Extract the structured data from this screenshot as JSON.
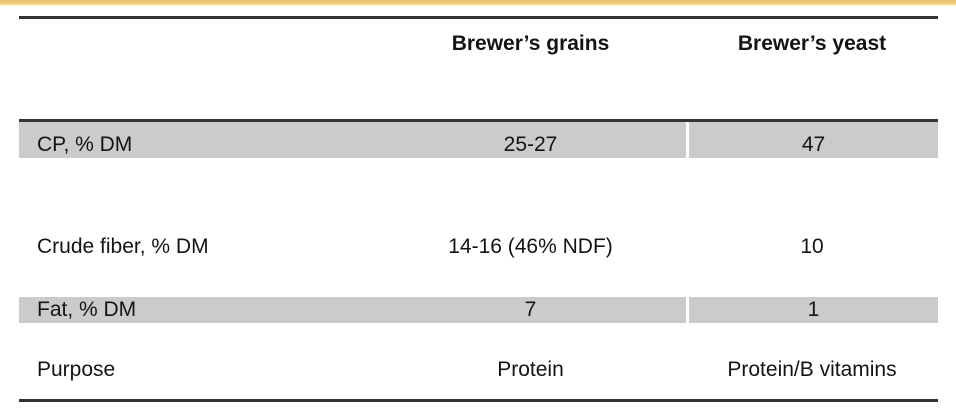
{
  "accent_bar": {
    "color": "#eaca7c"
  },
  "table": {
    "colors": {
      "shaded_row": "#cbcbcb",
      "border": "#343434",
      "text": "#141414"
    },
    "columns": [
      {
        "label": ""
      },
      {
        "label": "Brewer’s grains"
      },
      {
        "label": "Brewer’s yeast"
      }
    ],
    "rows": [
      {
        "label": "CP, % DM",
        "grains": "25-27",
        "yeast": "47",
        "shaded": true
      },
      {
        "label": "Crude fiber, % DM",
        "grains": "14-16 (46% NDF)",
        "yeast": "10",
        "shaded": false
      },
      {
        "label": "Fat, % DM",
        "grains": "7",
        "yeast": "1",
        "shaded": true
      },
      {
        "label": "Purpose",
        "grains": "Protein",
        "yeast": "Protein/B vitamins",
        "shaded": false
      }
    ]
  }
}
